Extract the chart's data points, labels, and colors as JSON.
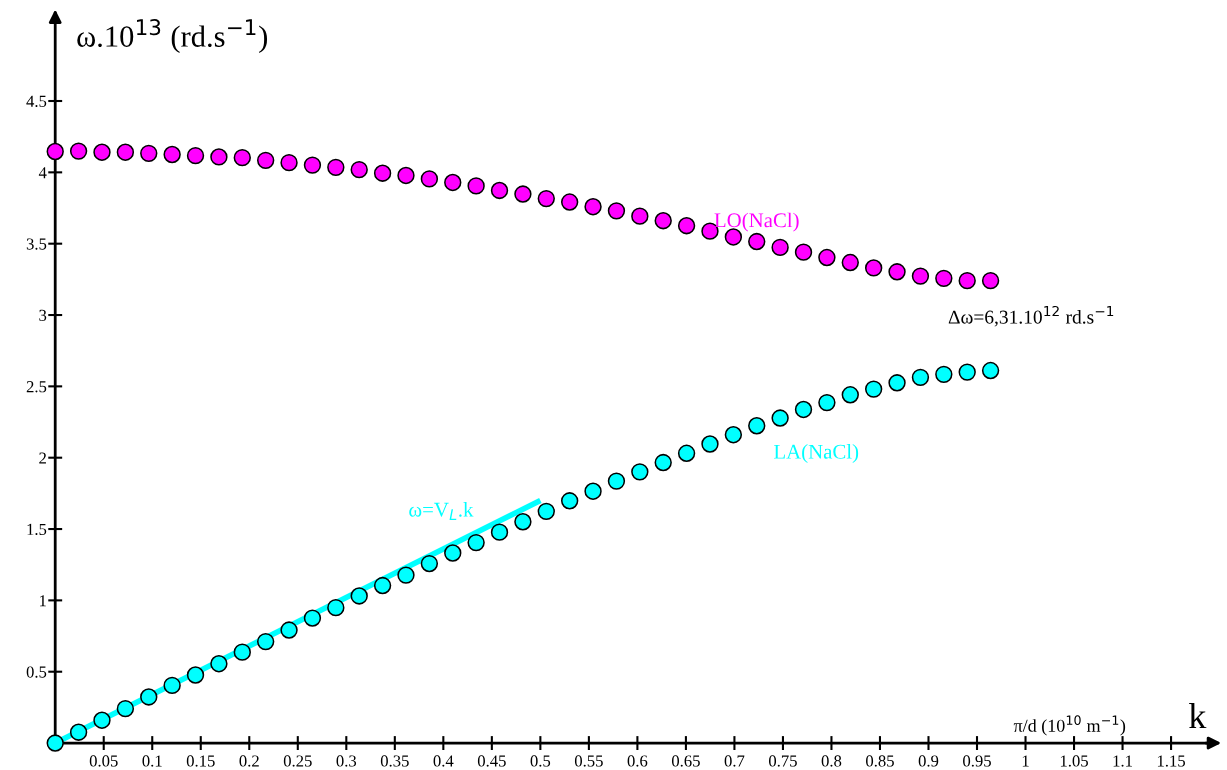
{
  "chart_data": {
    "type": "scatter",
    "ylabel": "ω.10$^{13}$ (rd.s$^{−1}$)",
    "xlabel": "k",
    "x": [
      0,
      0.0241,
      0.0482,
      0.0723,
      0.0964,
      0.1205,
      0.1446,
      0.1687,
      0.1928,
      0.2169,
      0.241,
      0.2651,
      0.2892,
      0.3133,
      0.3374,
      0.3615,
      0.3856,
      0.4097,
      0.4338,
      0.4579,
      0.482,
      0.5061,
      0.5302,
      0.5543,
      0.5784,
      0.6025,
      0.6266,
      0.6507,
      0.6748,
      0.6989,
      0.723,
      0.7471,
      0.7712,
      0.7953,
      0.8194,
      0.8435,
      0.8676,
      0.8917,
      0.9158,
      0.9399,
      0.964
    ],
    "series": [
      {
        "name": "LO(NaCl)",
        "color": "#ff00ff",
        "values": [
          4.146,
          4.149,
          4.141,
          4.141,
          4.133,
          4.125,
          4.117,
          4.108,
          4.103,
          4.084,
          4.068,
          4.051,
          4.035,
          4.019,
          3.994,
          3.978,
          3.954,
          3.929,
          3.905,
          3.873,
          3.848,
          3.816,
          3.792,
          3.759,
          3.73,
          3.693,
          3.661,
          3.626,
          3.588,
          3.547,
          3.515,
          3.474,
          3.441,
          3.403,
          3.368,
          3.33,
          3.303,
          3.273,
          3.257,
          3.241,
          3.241
        ]
      },
      {
        "name": "LA(NaCl)",
        "color": "#00ffff",
        "values": [
          0,
          0.076,
          0.16,
          0.241,
          0.323,
          0.404,
          0.477,
          0.556,
          0.637,
          0.711,
          0.792,
          0.876,
          0.949,
          1.031,
          1.104,
          1.177,
          1.258,
          1.332,
          1.405,
          1.478,
          1.551,
          1.624,
          1.698,
          1.765,
          1.836,
          1.901,
          1.966,
          2.031,
          2.096,
          2.161,
          2.224,
          2.278,
          2.338,
          2.386,
          2.441,
          2.481,
          2.525,
          2.563,
          2.584,
          2.6,
          2.611
        ]
      },
      {
        "name": "ω=V$_{L}$.k",
        "type": "line",
        "marker": "none",
        "color": "#00ffff",
        "x": [
          0,
          0.5
        ],
        "values": [
          0,
          1.7
        ]
      }
    ],
    "marker": "circle",
    "xlim": [
      0,
      1.195
    ],
    "ylim": [
      0,
      5.1
    ],
    "xticks": [
      0.05,
      0.1,
      0.15,
      0.2,
      0.25,
      0.3,
      0.35,
      0.4,
      0.45,
      0.5,
      0.55,
      0.6,
      0.65,
      0.7,
      0.75,
      0.8,
      0.85,
      0.9,
      0.95,
      1,
      1.05,
      1.1,
      1.15
    ],
    "yticks": [
      0.5,
      1,
      1.5,
      2,
      2.5,
      3,
      3.5,
      4,
      4.5
    ],
    "annotations": [
      "Δω=6,31.10$^{12}$ rd.s$^{−1}$",
      "π/d (10$^{10}$ m$^{−1}$)"
    ],
    "grid": false,
    "legend": false
  }
}
